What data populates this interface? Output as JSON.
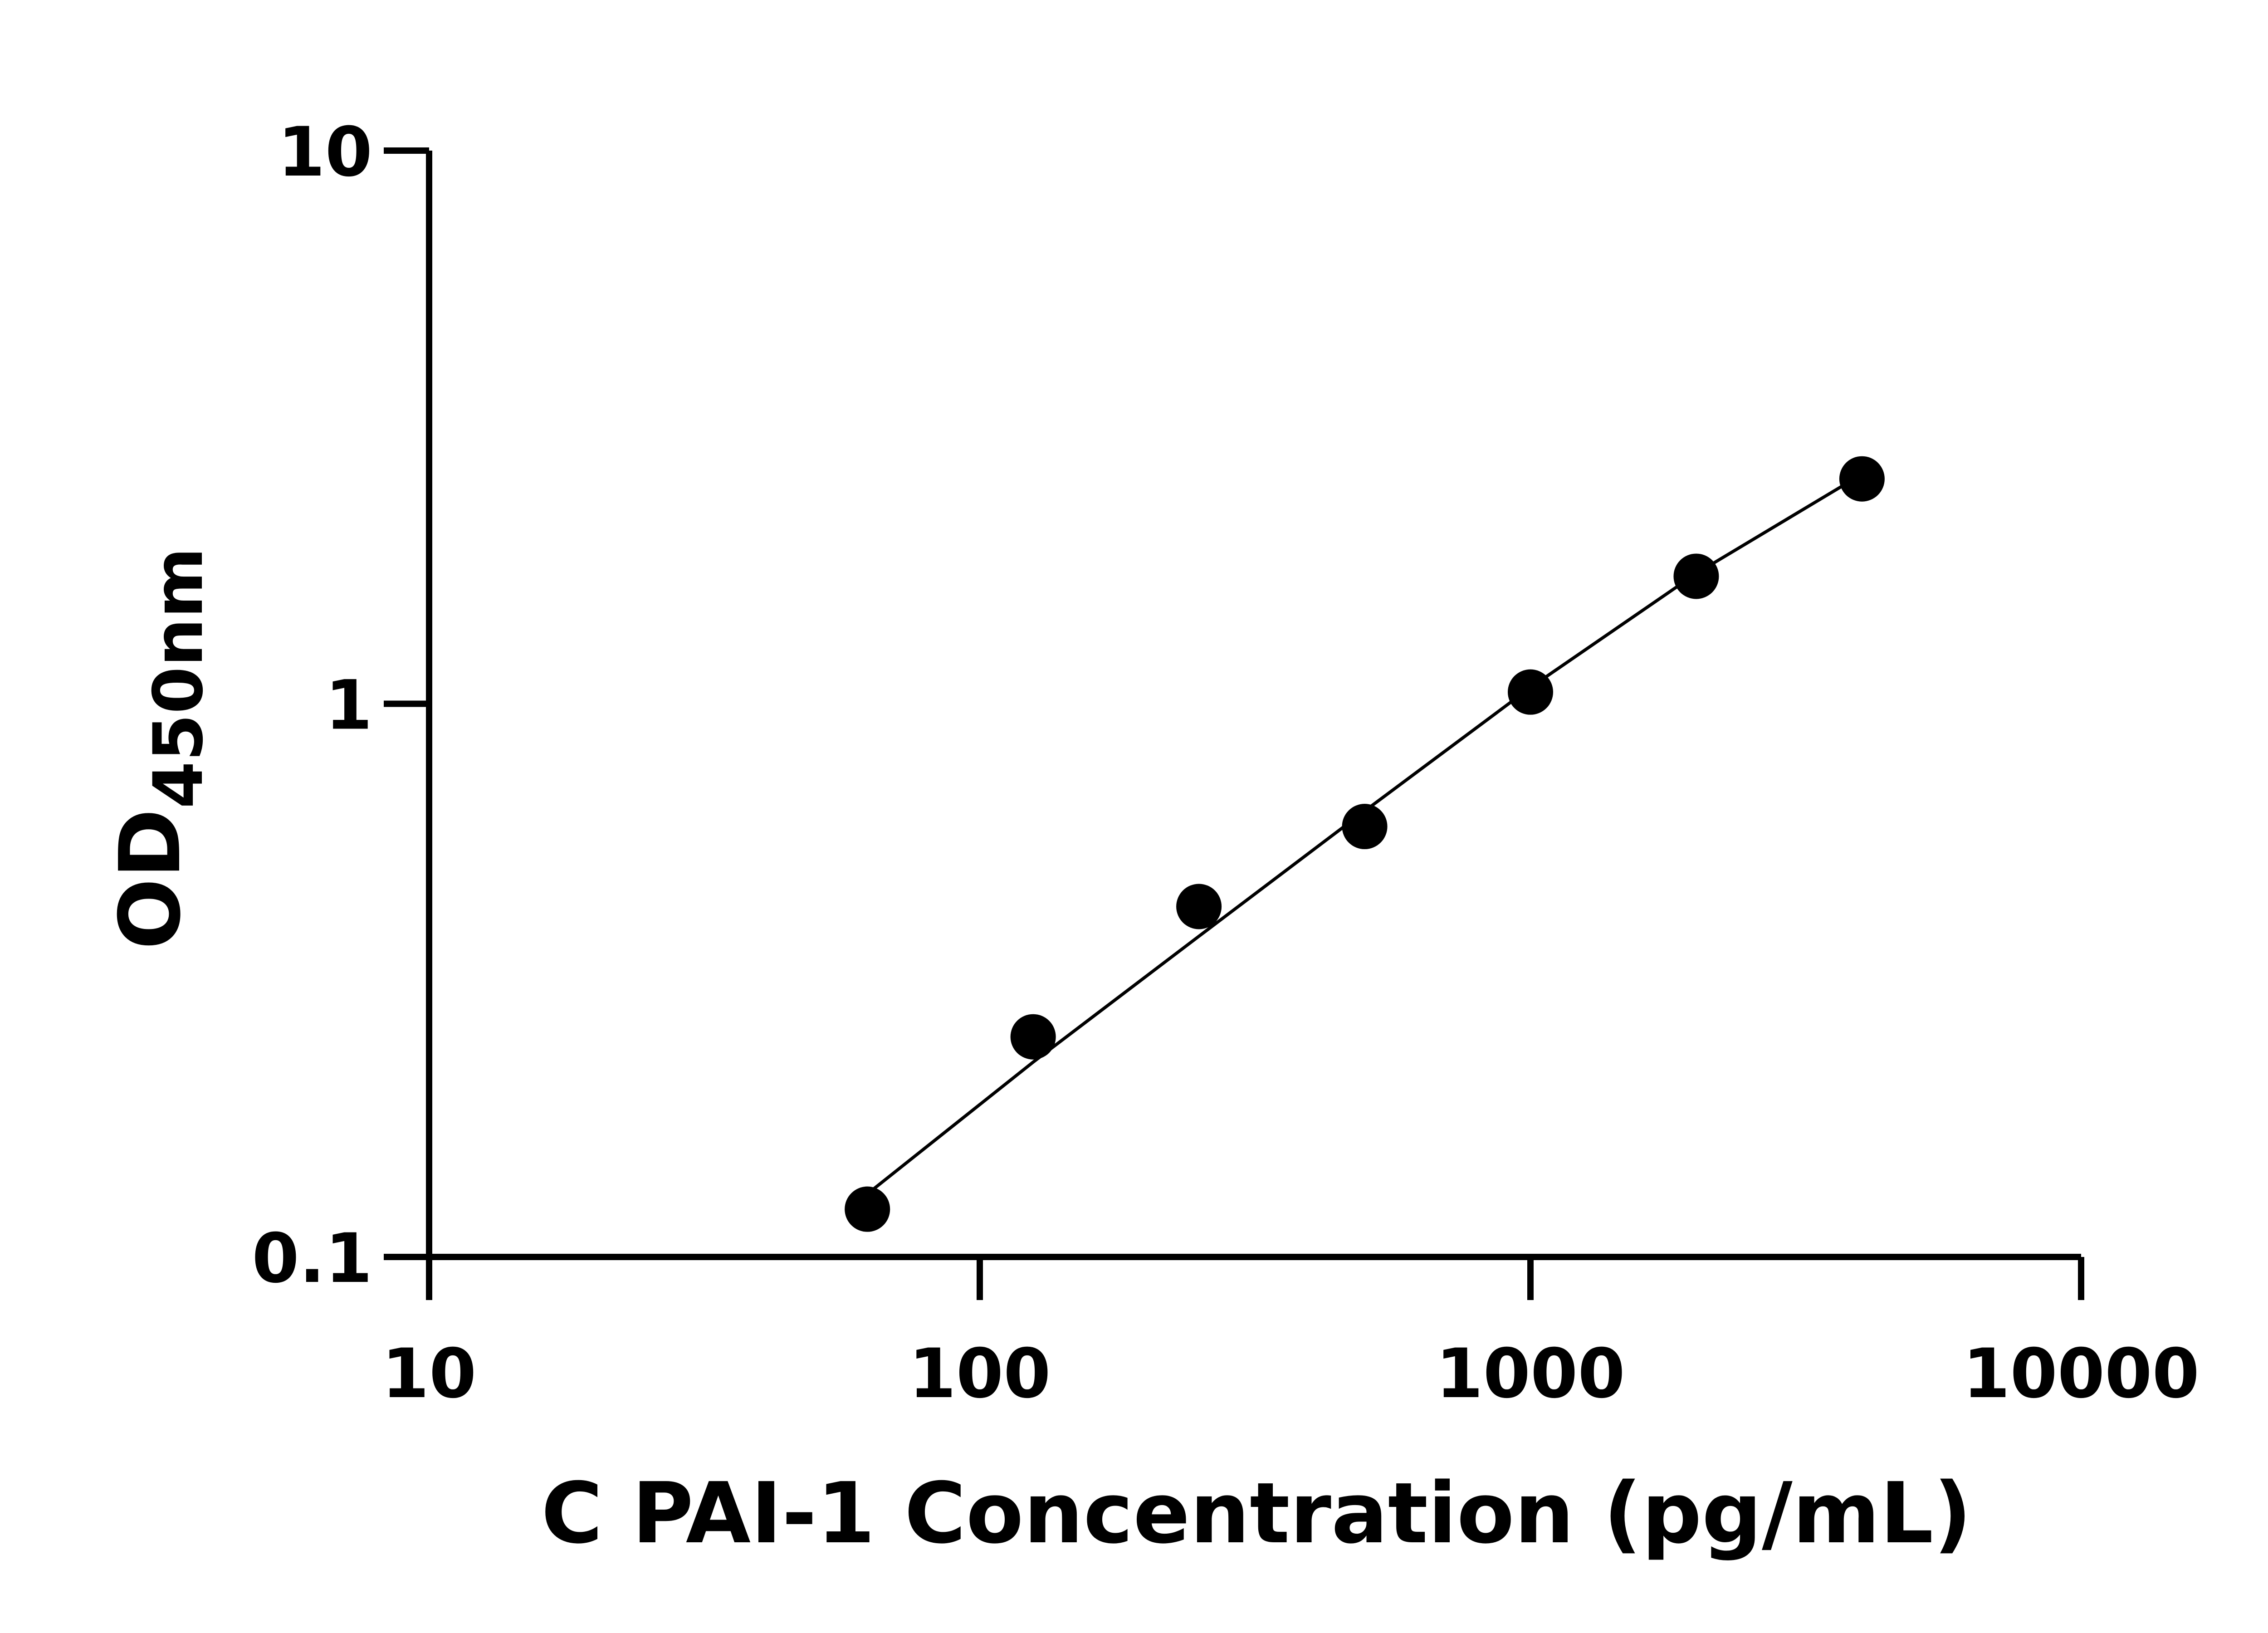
{
  "chart_data": {
    "type": "scatter",
    "title": "",
    "xlabel": "C PAI-1 Concentration (pg/mL)",
    "ylabel": {
      "main": "OD",
      "subscript": "450nm"
    },
    "xscale": "log",
    "yscale": "log",
    "xlim": [
      10,
      10000
    ],
    "ylim": [
      0.1,
      10
    ],
    "x_ticks": [
      10,
      100,
      1000,
      10000
    ],
    "x_tick_labels": [
      "10",
      "100",
      "1000",
      "10000"
    ],
    "y_ticks": [
      0.1,
      1,
      10
    ],
    "y_tick_labels": [
      "0.1",
      "1",
      "10"
    ],
    "grid": false,
    "legend": "none",
    "series": [
      {
        "marker": "filled-circle",
        "color": "#000000",
        "x": [
          62.5,
          125,
          250,
          500,
          1000,
          2000,
          4000
        ],
        "y": [
          0.122,
          0.25,
          0.43,
          0.6,
          1.05,
          1.7,
          2.55
        ]
      }
    ],
    "fit_line": {
      "x": [
        62.5,
        125,
        250,
        500,
        1000,
        2000,
        4000
      ],
      "y": [
        0.13,
        0.225,
        0.38,
        0.64,
        1.07,
        1.72,
        2.6
      ]
    }
  }
}
